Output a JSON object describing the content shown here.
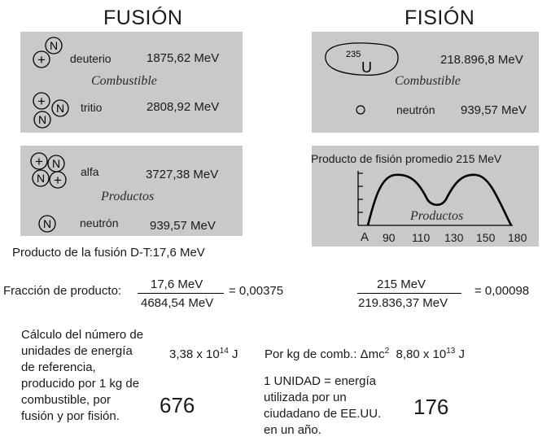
{
  "titles": {
    "fusion": "FUSIÓN",
    "fission": "FISIÓN"
  },
  "particle_symbols": {
    "neutron": "N",
    "proton": "+",
    "uranium_number": "235",
    "uranium_symbol": "U"
  },
  "fusion_fuel": {
    "deuterium_label": "deuterio",
    "deuterium_energy": "1875,62 MeV",
    "caption": "Combustible",
    "tritium_label": "tritio",
    "tritium_energy": "2808,92 MeV"
  },
  "fission_fuel": {
    "uranium_energy": "218.896,8 MeV",
    "caption": "Combustible",
    "neutron_label": "neutrón",
    "neutron_energy": "939,57 MeV"
  },
  "fusion_products": {
    "alpha_label": "alfa",
    "alpha_energy": "3727,38 MeV",
    "caption": "Productos",
    "neutron_label": "neutrón",
    "neutron_energy": "939,57 MeV"
  },
  "fission_products": {
    "title": "Producto de fisión promedio 215 MeV",
    "caption": "Productos",
    "axis_label": "A",
    "ticks": [
      "90",
      "110",
      "130",
      "150",
      "180"
    ]
  },
  "fusion_product_line": "Producto de la fusión D-T:17,6  MeV",
  "fraction_fusion": {
    "label": "Fracción de producto:",
    "numerator": "17,6  MeV",
    "denominator": "4684,54  MeV",
    "result": "= 0,00375"
  },
  "fraction_fission": {
    "numerator": "215  MeV",
    "denominator": "219.836,37  MeV",
    "result": "= 0,00098"
  },
  "calc_text": [
    "Cálculo del número de",
    "unidades de energía",
    "de referencia,",
    "producido por 1 kg de",
    "combustible, por",
    "fusión y por fisión."
  ],
  "fusion_energy": {
    "mantissa": "3,38 x 10",
    "exponent": "14",
    "unit": "J"
  },
  "fission_energy": {
    "prefix": "Por kg de comb.: Δmc",
    "prefix_exp": "2",
    "mantissa": "8,80 x 10",
    "exponent": "13",
    "unit": "J"
  },
  "unit_definition": [
    "1 UNIDAD = energía",
    "utilizada por un",
    "ciudadano de EE.UU.",
    "en un año."
  ],
  "result_fusion": "676",
  "result_fission": "176"
}
